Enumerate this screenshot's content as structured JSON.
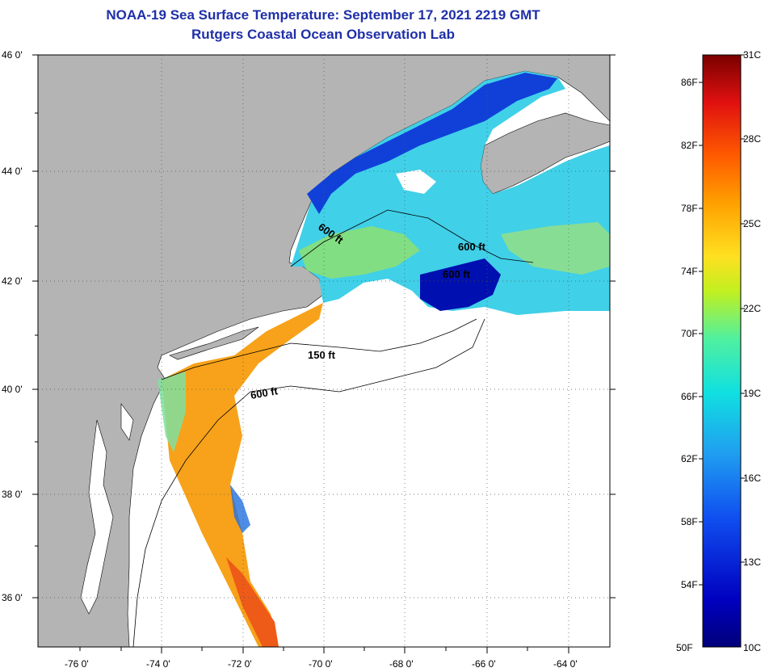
{
  "header": {
    "title": "NOAA-19 Sea Surface Temperature:  September 17, 2021 2219 GMT",
    "subtitle": "Rutgers Coastal Ocean Observation Lab"
  },
  "axes": {
    "lat_labels": [
      "46 0'",
      "44 0'",
      "42 0'",
      "40 0'",
      "38 0'",
      "36 0'"
    ],
    "lon_labels": [
      "-76 0'",
      "-74 0'",
      "-72 0'",
      "-70 0'",
      "-68 0'",
      "-66 0'",
      "-64 0'"
    ]
  },
  "contours": {
    "labels": [
      "600 ft",
      "600 ft",
      "600 ft",
      "150 ft",
      "600 ft"
    ]
  },
  "colorbar": {
    "fahrenheit": [
      "86F",
      "82F",
      "78F",
      "74F",
      "70F",
      "66F",
      "62F",
      "58F",
      "54F",
      "50F"
    ],
    "celsius": [
      "31C",
      "28C",
      "25C",
      "22C",
      "19C",
      "16C",
      "13C",
      "10C"
    ],
    "colors": [
      "#7a0000",
      "#d01010",
      "#ff5a00",
      "#ffa000",
      "#ffe020",
      "#b0f020",
      "#40f0c0",
      "#00d8f0",
      "#2090f0",
      "#1040e0",
      "#0000b0",
      "#00007a"
    ]
  },
  "legend_colors": {
    "land": "#b4b4b4",
    "cloud": "#ffffff",
    "title": "#1f2fa8"
  }
}
